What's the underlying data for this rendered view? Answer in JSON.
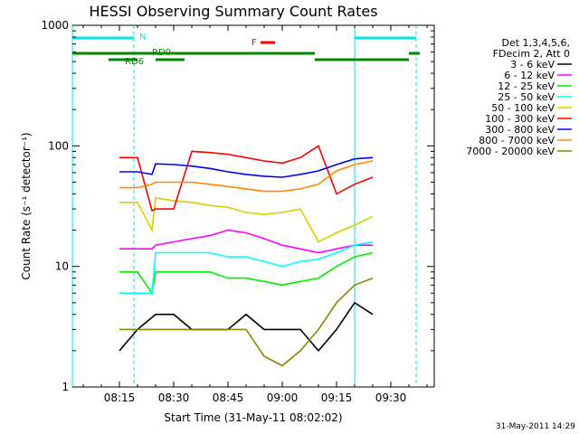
{
  "chart_data": {
    "type": "line",
    "title": "HESSI Observing Summary Count Rates",
    "xlabel": "Start Time (31-May-11 08:02:02)",
    "ylabel": "Count Rate (s⁻¹ detector⁻¹)",
    "y_scale": "log",
    "ylim": [
      1,
      1000
    ],
    "xlim_minutes_of_day": [
      482,
      582
    ],
    "x_ticks": [
      "08:15",
      "08:30",
      "08:45",
      "09:00",
      "09:15",
      "09:30"
    ],
    "y_ticks": [
      "1",
      "10",
      "100",
      "1000"
    ],
    "footer": "31-May-2011 14:29",
    "legend": {
      "position": "right",
      "header": [
        "Det 1,3,4,5,6,",
        "FDecim 2, Att 0"
      ],
      "entries": [
        {
          "label": "3 - 6 keV",
          "color": "#000000"
        },
        {
          "label": "6 - 12 keV",
          "color": "#ff00ff"
        },
        {
          "label": "12 - 25 keV",
          "color": "#00ee00"
        },
        {
          "label": "25 - 50 keV",
          "color": "#00ffff"
        },
        {
          "label": "50 - 100 keV",
          "color": "#ddcc00"
        },
        {
          "label": "100 - 300 keV",
          "color": "#ff0000"
        },
        {
          "label": "300 - 800 keV",
          "color": "#0000ff"
        },
        {
          "label": "800 - 7000 keV",
          "color": "#ff8800"
        },
        {
          "label": "7000 - 20000 keV",
          "color": "#888800"
        }
      ]
    },
    "flags": {
      "N_label": "N",
      "F_label": "F",
      "RD0_label": "RD0",
      "RD6_label": "RD6"
    },
    "series": [
      {
        "name": "3 - 6 keV",
        "color": "#000000",
        "points": [
          [
            495,
            2
          ],
          [
            500,
            3
          ],
          [
            505,
            4
          ],
          [
            510,
            4
          ],
          [
            515,
            3
          ],
          [
            520,
            3
          ],
          [
            525,
            3
          ],
          [
            530,
            4
          ],
          [
            535,
            3
          ],
          [
            540,
            3
          ],
          [
            545,
            3
          ],
          [
            550,
            2
          ],
          [
            555,
            3
          ],
          [
            560,
            5
          ],
          [
            565,
            4
          ]
        ]
      },
      {
        "name": "6 - 12 keV",
        "color": "#ff00ff",
        "points": [
          [
            495,
            14
          ],
          [
            500,
            14
          ],
          [
            504,
            14
          ],
          [
            505,
            15
          ],
          [
            510,
            16
          ],
          [
            515,
            17
          ],
          [
            520,
            18
          ],
          [
            525,
            20
          ],
          [
            530,
            19
          ],
          [
            535,
            17
          ],
          [
            540,
            15
          ],
          [
            545,
            14
          ],
          [
            550,
            13
          ],
          [
            555,
            14
          ],
          [
            560,
            15
          ],
          [
            565,
            15
          ]
        ]
      },
      {
        "name": "12 - 25 keV",
        "color": "#00ee00",
        "points": [
          [
            495,
            9
          ],
          [
            500,
            9
          ],
          [
            504,
            6
          ],
          [
            505,
            9
          ],
          [
            510,
            9
          ],
          [
            515,
            9
          ],
          [
            520,
            9
          ],
          [
            525,
            8
          ],
          [
            530,
            8
          ],
          [
            535,
            7.5
          ],
          [
            540,
            7
          ],
          [
            545,
            7.5
          ],
          [
            550,
            8
          ],
          [
            555,
            10
          ],
          [
            560,
            12
          ],
          [
            565,
            13
          ]
        ]
      },
      {
        "name": "25 - 50 keV",
        "color": "#00ffff",
        "points": [
          [
            495,
            6
          ],
          [
            500,
            6
          ],
          [
            504,
            6
          ],
          [
            505,
            13
          ],
          [
            510,
            13
          ],
          [
            515,
            13
          ],
          [
            520,
            13
          ],
          [
            525,
            12
          ],
          [
            530,
            12
          ],
          [
            535,
            11
          ],
          [
            540,
            10
          ],
          [
            545,
            11
          ],
          [
            550,
            11.5
          ],
          [
            555,
            13
          ],
          [
            560,
            15
          ],
          [
            565,
            16
          ]
        ]
      },
      {
        "name": "50 - 100 keV",
        "color": "#ddcc00",
        "points": [
          [
            495,
            34
          ],
          [
            500,
            34
          ],
          [
            504,
            20
          ],
          [
            505,
            37
          ],
          [
            510,
            35
          ],
          [
            515,
            34
          ],
          [
            520,
            32
          ],
          [
            525,
            31
          ],
          [
            530,
            28
          ],
          [
            535,
            27
          ],
          [
            540,
            28
          ],
          [
            545,
            30
          ],
          [
            550,
            16
          ],
          [
            555,
            19
          ],
          [
            560,
            22
          ],
          [
            565,
            26
          ]
        ]
      },
      {
        "name": "100 - 300 keV",
        "color": "#ff0000",
        "points": [
          [
            495,
            80
          ],
          [
            500,
            80
          ],
          [
            504,
            29
          ],
          [
            505,
            30
          ],
          [
            510,
            30
          ],
          [
            515,
            90
          ],
          [
            520,
            88
          ],
          [
            525,
            85
          ],
          [
            530,
            80
          ],
          [
            535,
            75
          ],
          [
            540,
            72
          ],
          [
            545,
            80
          ],
          [
            550,
            100
          ],
          [
            555,
            40
          ],
          [
            560,
            48
          ],
          [
            565,
            55
          ]
        ]
      },
      {
        "name": "300 - 800 keV",
        "color": "#0000ff",
        "points": [
          [
            495,
            61
          ],
          [
            500,
            61
          ],
          [
            504,
            58
          ],
          [
            505,
            71
          ],
          [
            510,
            70
          ],
          [
            515,
            68
          ],
          [
            520,
            65
          ],
          [
            525,
            61
          ],
          [
            530,
            58
          ],
          [
            535,
            56
          ],
          [
            540,
            55
          ],
          [
            545,
            58
          ],
          [
            550,
            62
          ],
          [
            555,
            70
          ],
          [
            560,
            78
          ],
          [
            565,
            80
          ]
        ]
      },
      {
        "name": "800 - 7000 keV",
        "color": "#ff8800",
        "points": [
          [
            495,
            45
          ],
          [
            500,
            45
          ],
          [
            504,
            48
          ],
          [
            505,
            50
          ],
          [
            510,
            50
          ],
          [
            515,
            50
          ],
          [
            520,
            48
          ],
          [
            525,
            46
          ],
          [
            530,
            44
          ],
          [
            535,
            42
          ],
          [
            540,
            42
          ],
          [
            545,
            44
          ],
          [
            550,
            48
          ],
          [
            555,
            62
          ],
          [
            560,
            70
          ],
          [
            565,
            75
          ]
        ]
      },
      {
        "name": "7000 - 20000 keV",
        "color": "#888800",
        "points": [
          [
            495,
            3
          ],
          [
            500,
            3
          ],
          [
            504,
            3
          ],
          [
            505,
            3
          ],
          [
            510,
            3
          ],
          [
            515,
            3
          ],
          [
            520,
            3
          ],
          [
            525,
            3
          ],
          [
            530,
            3
          ],
          [
            535,
            1.8
          ],
          [
            540,
            1.5
          ],
          [
            545,
            2
          ],
          [
            550,
            3
          ],
          [
            555,
            5
          ],
          [
            560,
            7
          ],
          [
            565,
            8
          ]
        ]
      }
    ]
  }
}
